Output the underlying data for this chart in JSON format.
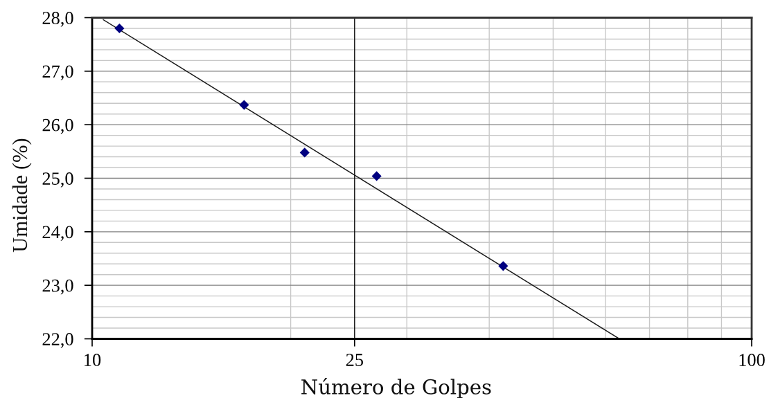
{
  "chart_data": {
    "type": "scatter",
    "xlabel": "Número de Golpes",
    "ylabel": "Umidade (%)",
    "log": "x",
    "xlim": [
      10,
      100
    ],
    "ylim": [
      22,
      28
    ],
    "xticks": [
      10,
      {
        "value": 20,
        "label": null
      },
      25,
      {
        "value": 30,
        "label": null
      },
      {
        "value": 40,
        "label": null
      },
      {
        "value": 50,
        "label": null
      },
      {
        "value": 60,
        "label": null
      },
      {
        "value": 70,
        "label": null
      },
      {
        "value": 80,
        "label": null
      },
      {
        "value": 90,
        "label": null
      },
      100
    ],
    "yticks": [
      {
        "value": 22,
        "label": "22,0"
      },
      {
        "value": 22.2,
        "label": null
      },
      {
        "value": 22.4,
        "label": null
      },
      {
        "value": 22.6,
        "label": null
      },
      {
        "value": 22.8,
        "label": null
      },
      {
        "value": 23,
        "label": "23,0"
      },
      {
        "value": 23.2,
        "label": null
      },
      {
        "value": 23.4,
        "label": null
      },
      {
        "value": 23.6,
        "label": null
      },
      {
        "value": 23.8,
        "label": null
      },
      {
        "value": 24,
        "label": "24,0"
      },
      {
        "value": 24.2,
        "label": null
      },
      {
        "value": 24.4,
        "label": null
      },
      {
        "value": 24.6,
        "label": null
      },
      {
        "value": 24.8,
        "label": null
      },
      {
        "value": 25,
        "label": "25,0"
      },
      {
        "value": 25.2,
        "label": null
      },
      {
        "value": 25.4,
        "label": null
      },
      {
        "value": 25.6,
        "label": null
      },
      {
        "value": 25.8,
        "label": null
      },
      {
        "value": 26,
        "label": "26,0"
      },
      {
        "value": 26.2,
        "label": null
      },
      {
        "value": 26.4,
        "label": null
      },
      {
        "value": 26.6,
        "label": null
      },
      {
        "value": 26.8,
        "label": null
      },
      {
        "value": 27,
        "label": "27,0"
      },
      {
        "value": 27.2,
        "label": null
      },
      {
        "value": 27.4,
        "label": null
      },
      {
        "value": 27.6,
        "label": null
      },
      {
        "value": 27.8,
        "label": null
      },
      {
        "value": 28,
        "label": "28,0"
      }
    ],
    "grid": true,
    "marker": "diamond",
    "series": [
      {
        "color": "#000080",
        "x": [
          11,
          17,
          21,
          27,
          42
        ],
        "values": [
          27.8,
          26.37,
          25.48,
          25.04,
          23.36
        ]
      },
      {
        "type": "line",
        "color": "#1a1a1a",
        "marker": "none",
        "line_style": "solid",
        "x": [
          10.4,
          63
        ],
        "values": [
          27.96,
          22.0
        ]
      }
    ],
    "ref_lines": [
      {
        "axis": "x",
        "value": 25,
        "color": "#000000"
      }
    ]
  }
}
